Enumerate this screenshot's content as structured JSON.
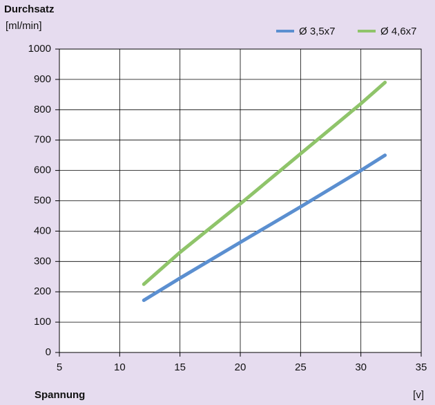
{
  "chart_data": {
    "type": "line",
    "title": "Durchsatz",
    "y_unit": "[ml/min]",
    "x_label": "Spannung",
    "x_unit": "[v]",
    "x": [
      12,
      15,
      20,
      25,
      30,
      32
    ],
    "series": [
      {
        "name": "Ø 3,5x7",
        "color": "#5b8fd0",
        "values": [
          172,
          245,
          363,
          480,
          600,
          650
        ]
      },
      {
        "name": "Ø 4,6x7",
        "color": "#8fc46a",
        "values": [
          225,
          330,
          490,
          655,
          820,
          890
        ]
      }
    ],
    "xlim": [
      5,
      35
    ],
    "xticks": [
      5,
      10,
      15,
      20,
      25,
      30,
      35
    ],
    "ylim": [
      0,
      1000
    ],
    "yticks": [
      0,
      100,
      200,
      300,
      400,
      500,
      600,
      700,
      800,
      900,
      1000
    ],
    "grid": true,
    "legend": "top-right"
  }
}
